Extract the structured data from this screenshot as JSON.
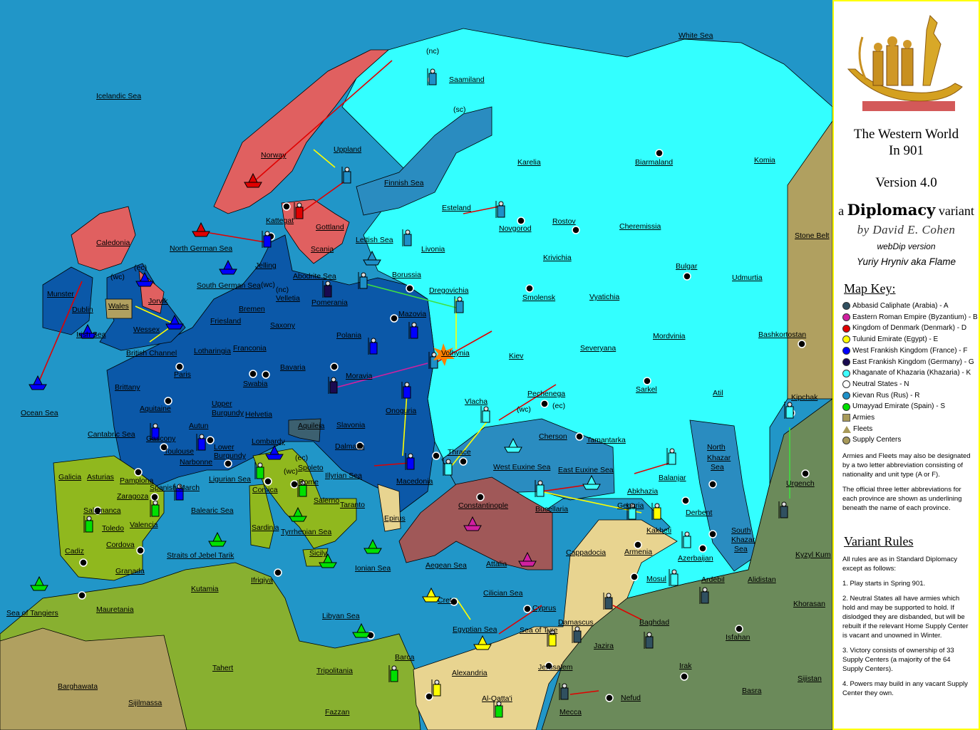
{
  "colors": {
    "sea": "#2196c8",
    "rus_sea": "#2a8cc0",
    "khazaria_land": "#33ffff",
    "france_germany_land": "#0b58a8",
    "denmark_land": "#e06060",
    "spain_land": "#90b81e",
    "byzantium_land": "#a05858",
    "egypt_land": "#e8d490",
    "arabia_land": "#6b8a5a",
    "neutral_khaki": "#b0a060",
    "africa_land": "#88b030",
    "aquileia": "#3c6070"
  },
  "map": {
    "labels": [
      "White Sea",
      "(nc)",
      "Saamiland",
      "Icelandic Sea",
      "(sc)",
      "Uppland",
      "Norway",
      "Karelia",
      "Biarmaland",
      "Komia",
      "Finnish Sea",
      "Kattegat",
      "Gottland",
      "Esteland",
      "Novgorod",
      "Rostov",
      "Cheremissia",
      "Stone Belt",
      "Caledonia",
      "North German Sea",
      "Scania",
      "Lettish Sea",
      "Livonia",
      "Krivichia",
      "Jelling",
      "Bulgar",
      "Udmurtia",
      "(wc)",
      "(ec)",
      "Abodrite Sea",
      "Borussia",
      "South German Sea",
      "(wc)",
      "(nc)",
      "Munster",
      "Velletia",
      "Pomerania",
      "Dregovichia",
      "Smolensk",
      "Vyatichia",
      "Jorvik",
      "Wales",
      "Dublin",
      "Bremen",
      "Mazovia",
      "Saxony",
      "Wessex",
      "Irish Sea",
      "Friesland",
      "Polania",
      "Mordvinia",
      "Bashkortostan",
      "Franconia",
      "British Channel",
      "Lotharingia",
      "Volhynia",
      "Kiev",
      "Severyana",
      "Paris",
      "Bavaria",
      "Moravia",
      "Swabia",
      "Brittany",
      "Sarkel",
      "Atil",
      "Kipchak",
      "Pechenega",
      "Vlacha",
      "Aquitaine",
      "Upper",
      "Burgundy",
      "Helvetia",
      "Onoguria",
      "(wc)",
      "(ec)",
      "Ocean Sea",
      "Autun",
      "Aquileia",
      "Slavonia",
      "Cantabric Sea",
      "Gascony",
      "Toulouse",
      "Lower",
      "Burgundy",
      "Lombardy",
      "Dalmatia",
      "Cherson",
      "Tamantarka",
      "North",
      "Khazar",
      "Sea",
      "Thrace",
      "Narbonne",
      "(ec)",
      "Spoleto",
      "(wc)",
      "Galicia",
      "Asturias",
      "Pamplona",
      "Ligurian Sea",
      "Illyrian Sea",
      "Rome",
      "West Euxine Sea",
      "East Euxine Sea",
      "Macedonia",
      "Balanjar",
      "Urgench",
      "Spanish March",
      "Zaragoza",
      "Corsica",
      "Salerno",
      "Taranto",
      "Abkhazia",
      "Constantinople",
      "Salamanca",
      "Balearic Sea",
      "Geogria",
      "Derbent",
      "Valencia",
      "Toledo",
      "Sardinia",
      "Tyrrhenian Sea",
      "Epirus",
      "Bucellaria",
      "Kakheti",
      "South",
      "Khazar",
      "Sea",
      "Cordova",
      "Cadiz",
      "Sicily",
      "Cappadocia",
      "Armenia",
      "Kyzyl Kum",
      "Straits of Jebel Tarik",
      "Azerbaijan",
      "Aegean Sea",
      "Attalia",
      "Ionian Sea",
      "Granada",
      "Ifriqiya",
      "Mosul",
      "Ardebil",
      "Alidistan",
      "Kutamia",
      "Cilician Sea",
      "Crete",
      "Cyprus",
      "Khorasan",
      "Mauretania",
      "Sea of Tangiers",
      "Libyan Sea",
      "Damascus",
      "Baghdad",
      "Egyptian Sea",
      "Sea of Tyre",
      "Isfahan",
      "Barca",
      "Jazira",
      "Irak",
      "Tahert",
      "Jerusalem",
      "Tripolitania",
      "Alexandria",
      "Sijistan",
      "Barghawata",
      "Basra",
      "Al-Qatta'i",
      "Nefud",
      "Sijilmassa",
      "Fazzan",
      "Mecca"
    ]
  },
  "panel": {
    "title_line1": "The Western World",
    "title_line2": "In 901",
    "version": "Version 4.0",
    "dip_prefix": "a",
    "dip_name": "Diplomacy",
    "dip_suffix": "variant",
    "author": "by David E. Cohen",
    "webdip": "webDip version",
    "port_author": "Yuriy Hryniv aka Flame",
    "map_key_title": "Map Key:",
    "key": [
      {
        "label": "Abbasid Caliphate (Arabia) - A",
        "color": "#305060"
      },
      {
        "label": "Eastern Roman Empire (Byzantium) - B",
        "color": "#d020a0"
      },
      {
        "label": "Kingdom of Denmark (Denmark) - D",
        "color": "#e00000"
      },
      {
        "label": "Tulunid Emirate (Egypt) - E",
        "color": "#ffff00"
      },
      {
        "label": "West Frankish Kingdom (France) - F",
        "color": "#0000ff"
      },
      {
        "label": "East Frankish Kingdom (Germany) - G",
        "color": "#1a0a50"
      },
      {
        "label": "Khaganate of Khazaria (Khazaria) - K",
        "color": "#40ffff"
      },
      {
        "label": "Neutral States - N",
        "color": "#ffffff"
      },
      {
        "label": "Kievan Rus (Rus) - R",
        "color": "#1e90c8"
      },
      {
        "label": "Umayyad Emirate (Spain) - S",
        "color": "#00e000"
      }
    ],
    "armies": "Armies",
    "fleets": "Fleets",
    "supply_centers": "Supply Centers",
    "note1": "Armies and Fleets may also be designated by a two letter abbreviation consisting of nationality and unit type (A or F).",
    "note2": "The official three letter abbreviations for each province are shown as underlining beneath the name of each province.",
    "rules_title": "Variant Rules",
    "rules_intro": "All rules are as in Standard Diplomacy except as follows:",
    "rules": [
      "1. Play starts in Spring 901.",
      "2. Neutral States all have armies which hold and may be supported to hold.  If dislodged they are disbanded, but will be rebuilt if the relevant Home Supply Center is vacant and unowned in Winter.",
      "3. Victory consists of ownership of 33 Supply Centers (a majority of the 64 Supply Centers).",
      "4. Powers may build in any vacant Supply Center they own."
    ]
  }
}
